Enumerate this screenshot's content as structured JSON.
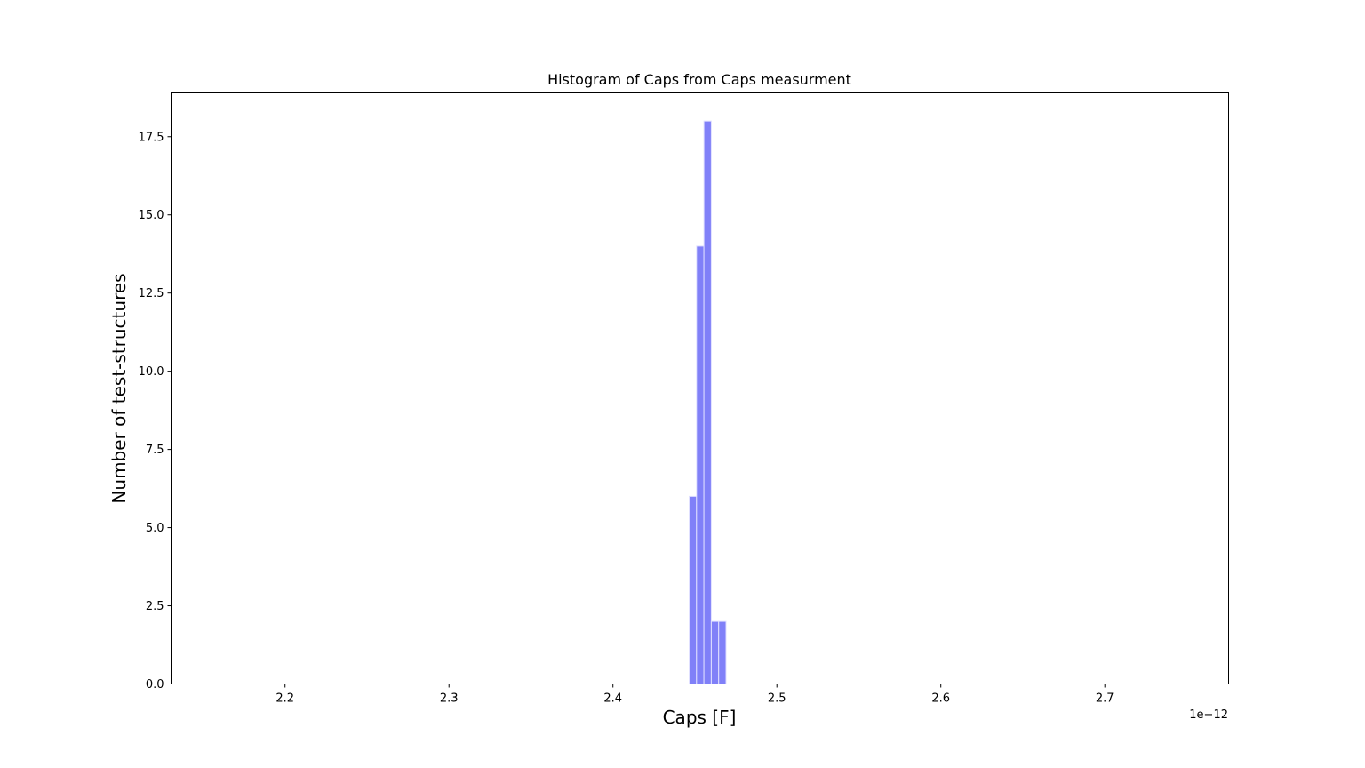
{
  "chart_data": {
    "type": "bar",
    "title": "Histogram of Caps from Caps measurment",
    "xlabel": "Caps [F]",
    "ylabel": "Number of test-structures",
    "x_offset_label": "1e−12",
    "xlim": [
      2.1305,
      2.7755
    ],
    "ylim": [
      0,
      18.9
    ],
    "x_ticks": [
      2.2,
      2.3,
      2.4,
      2.5,
      2.6,
      2.7
    ],
    "x_tick_labels": [
      "2.2",
      "2.3",
      "2.4",
      "2.5",
      "2.6",
      "2.7"
    ],
    "y_ticks": [
      0.0,
      2.5,
      5.0,
      7.5,
      10.0,
      12.5,
      15.0,
      17.5
    ],
    "y_tick_labels": [
      "0.0",
      "2.5",
      "5.0",
      "7.5",
      "10.0",
      "12.5",
      "15.0",
      "17.5"
    ],
    "bins": [
      {
        "x0": 2.4465,
        "x1": 2.451,
        "count": 6
      },
      {
        "x0": 2.451,
        "x1": 2.4555,
        "count": 14
      },
      {
        "x0": 2.4555,
        "x1": 2.46,
        "count": 18
      },
      {
        "x0": 2.46,
        "x1": 2.4645,
        "count": 2
      },
      {
        "x0": 2.4645,
        "x1": 2.469,
        "count": 2
      }
    ],
    "bar_color": "#8080f8",
    "bar_edge_color": "#e0e0ff",
    "grid": false,
    "legend": "none"
  }
}
